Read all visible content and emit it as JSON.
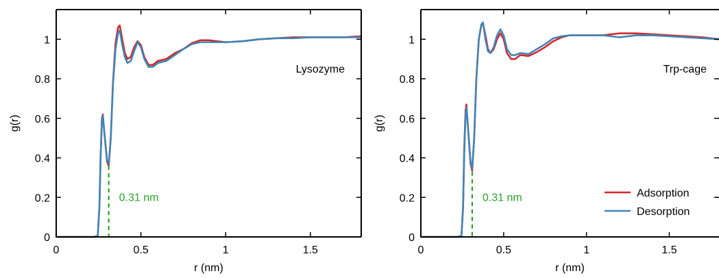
{
  "chart_data": [
    {
      "type": "line",
      "panel_label": "Lysozyme",
      "xlabel": "r (nm)",
      "ylabel": "g(r)",
      "xlim": [
        0,
        1.8
      ],
      "ylim": [
        0,
        1.15
      ],
      "xticks": [
        0,
        0.5,
        1,
        1.5
      ],
      "xtick_labels": [
        "0",
        "0.5",
        "1",
        "1.5"
      ],
      "yticks": [
        0,
        0.2,
        0.4,
        0.6,
        0.8,
        1
      ],
      "ytick_labels": [
        "0",
        "0.2",
        "0.4",
        "0.6",
        "0.8",
        "1"
      ],
      "grid": false,
      "annotation": {
        "text": "0.31 nm",
        "x": 0.31,
        "y": 0.36,
        "color": "#2ca02c"
      },
      "series": [
        {
          "color": "#d62728",
          "points": [
            [
              0,
              0
            ],
            [
              0.22,
              0
            ],
            [
              0.245,
              0.005
            ],
            [
              0.255,
              0.15
            ],
            [
              0.262,
              0.4
            ],
            [
              0.27,
              0.6
            ],
            [
              0.275,
              0.62
            ],
            [
              0.285,
              0.52
            ],
            [
              0.3,
              0.38
            ],
            [
              0.31,
              0.36
            ],
            [
              0.322,
              0.5
            ],
            [
              0.335,
              0.78
            ],
            [
              0.35,
              0.98
            ],
            [
              0.365,
              1.06
            ],
            [
              0.375,
              1.07
            ],
            [
              0.39,
              1.0
            ],
            [
              0.405,
              0.93
            ],
            [
              0.42,
              0.9
            ],
            [
              0.44,
              0.91
            ],
            [
              0.46,
              0.96
            ],
            [
              0.48,
              0.99
            ],
            [
              0.5,
              0.97
            ],
            [
              0.52,
              0.91
            ],
            [
              0.545,
              0.87
            ],
            [
              0.57,
              0.87
            ],
            [
              0.6,
              0.89
            ],
            [
              0.65,
              0.9
            ],
            [
              0.7,
              0.93
            ],
            [
              0.75,
              0.95
            ],
            [
              0.8,
              0.98
            ],
            [
              0.85,
              0.995
            ],
            [
              0.9,
              0.995
            ],
            [
              0.95,
              0.99
            ],
            [
              1.0,
              0.985
            ],
            [
              1.1,
              0.99
            ],
            [
              1.2,
              1.0
            ],
            [
              1.3,
              1.005
            ],
            [
              1.4,
              1.01
            ],
            [
              1.5,
              1.01
            ],
            [
              1.6,
              1.01
            ],
            [
              1.7,
              1.01
            ],
            [
              1.8,
              1.015
            ]
          ]
        },
        {
          "color": "#3f86b7",
          "points": [
            [
              0,
              0
            ],
            [
              0.22,
              0
            ],
            [
              0.245,
              0.005
            ],
            [
              0.255,
              0.15
            ],
            [
              0.262,
              0.4
            ],
            [
              0.27,
              0.6
            ],
            [
              0.275,
              0.615
            ],
            [
              0.285,
              0.52
            ],
            [
              0.3,
              0.39
            ],
            [
              0.31,
              0.37
            ],
            [
              0.322,
              0.5
            ],
            [
              0.335,
              0.77
            ],
            [
              0.35,
              0.95
            ],
            [
              0.365,
              1.03
            ],
            [
              0.375,
              1.045
            ],
            [
              0.39,
              0.97
            ],
            [
              0.405,
              0.91
            ],
            [
              0.42,
              0.88
            ],
            [
              0.44,
              0.89
            ],
            [
              0.46,
              0.94
            ],
            [
              0.48,
              0.985
            ],
            [
              0.5,
              0.96
            ],
            [
              0.52,
              0.9
            ],
            [
              0.545,
              0.86
            ],
            [
              0.57,
              0.86
            ],
            [
              0.6,
              0.88
            ],
            [
              0.65,
              0.89
            ],
            [
              0.7,
              0.92
            ],
            [
              0.75,
              0.95
            ],
            [
              0.8,
              0.975
            ],
            [
              0.85,
              0.985
            ],
            [
              0.9,
              0.985
            ],
            [
              0.95,
              0.985
            ],
            [
              1.0,
              0.985
            ],
            [
              1.1,
              0.99
            ],
            [
              1.2,
              1.0
            ],
            [
              1.3,
              1.005
            ],
            [
              1.4,
              1.005
            ],
            [
              1.5,
              1.01
            ],
            [
              1.6,
              1.01
            ],
            [
              1.7,
              1.01
            ],
            [
              1.8,
              1.01
            ]
          ]
        }
      ]
    },
    {
      "type": "line",
      "panel_label": "Trp-cage",
      "xlabel": "r (nm)",
      "ylabel": "g(r)",
      "xlim": [
        0,
        1.8
      ],
      "ylim": [
        0,
        1.15
      ],
      "xticks": [
        0,
        0.5,
        1,
        1.5
      ],
      "xtick_labels": [
        "0",
        "0.5",
        "1",
        "1.5"
      ],
      "yticks": [
        0,
        0.2,
        0.4,
        0.6,
        0.8,
        1
      ],
      "ytick_labels": [
        "0",
        "0.2",
        "0.4",
        "0.6",
        "0.8",
        "1"
      ],
      "grid": false,
      "legend_position": "bottom-right",
      "annotation": {
        "text": "0.31 nm",
        "x": 0.31,
        "y": 0.33,
        "color": "#2ca02c"
      },
      "series": [
        {
          "name": "Adsorption",
          "color": "#d62728",
          "points": [
            [
              0,
              0
            ],
            [
              0.22,
              0
            ],
            [
              0.245,
              0.005
            ],
            [
              0.255,
              0.15
            ],
            [
              0.262,
              0.45
            ],
            [
              0.27,
              0.64
            ],
            [
              0.275,
              0.67
            ],
            [
              0.285,
              0.55
            ],
            [
              0.3,
              0.37
            ],
            [
              0.31,
              0.335
            ],
            [
              0.322,
              0.5
            ],
            [
              0.335,
              0.8
            ],
            [
              0.35,
              1.0
            ],
            [
              0.365,
              1.07
            ],
            [
              0.375,
              1.08
            ],
            [
              0.39,
              1.02
            ],
            [
              0.405,
              0.95
            ],
            [
              0.42,
              0.93
            ],
            [
              0.44,
              0.95
            ],
            [
              0.46,
              1.0
            ],
            [
              0.48,
              1.03
            ],
            [
              0.5,
              1.0
            ],
            [
              0.52,
              0.93
            ],
            [
              0.545,
              0.9
            ],
            [
              0.57,
              0.9
            ],
            [
              0.6,
              0.92
            ],
            [
              0.65,
              0.915
            ],
            [
              0.7,
              0.935
            ],
            [
              0.75,
              0.96
            ],
            [
              0.8,
              0.99
            ],
            [
              0.85,
              1.01
            ],
            [
              0.9,
              1.02
            ],
            [
              1.0,
              1.02
            ],
            [
              1.1,
              1.02
            ],
            [
              1.2,
              1.03
            ],
            [
              1.3,
              1.03
            ],
            [
              1.4,
              1.025
            ],
            [
              1.5,
              1.02
            ],
            [
              1.6,
              1.015
            ],
            [
              1.7,
              1.01
            ],
            [
              1.8,
              1.0
            ]
          ]
        },
        {
          "name": "Desorption",
          "color": "#3f86b7",
          "points": [
            [
              0,
              0
            ],
            [
              0.22,
              0
            ],
            [
              0.245,
              0.005
            ],
            [
              0.255,
              0.15
            ],
            [
              0.262,
              0.42
            ],
            [
              0.27,
              0.62
            ],
            [
              0.275,
              0.655
            ],
            [
              0.285,
              0.55
            ],
            [
              0.3,
              0.38
            ],
            [
              0.31,
              0.345
            ],
            [
              0.322,
              0.5
            ],
            [
              0.335,
              0.8
            ],
            [
              0.35,
              1.0
            ],
            [
              0.365,
              1.075
            ],
            [
              0.375,
              1.085
            ],
            [
              0.39,
              1.0
            ],
            [
              0.405,
              0.94
            ],
            [
              0.42,
              0.93
            ],
            [
              0.44,
              0.96
            ],
            [
              0.46,
              1.02
            ],
            [
              0.48,
              1.05
            ],
            [
              0.5,
              1.02
            ],
            [
              0.52,
              0.95
            ],
            [
              0.545,
              0.92
            ],
            [
              0.57,
              0.92
            ],
            [
              0.6,
              0.93
            ],
            [
              0.65,
              0.925
            ],
            [
              0.7,
              0.95
            ],
            [
              0.75,
              0.975
            ],
            [
              0.8,
              1.005
            ],
            [
              0.85,
              1.015
            ],
            [
              0.9,
              1.02
            ],
            [
              1.0,
              1.02
            ],
            [
              1.1,
              1.02
            ],
            [
              1.2,
              1.01
            ],
            [
              1.3,
              1.02
            ],
            [
              1.4,
              1.02
            ],
            [
              1.5,
              1.015
            ],
            [
              1.6,
              1.01
            ],
            [
              1.7,
              1.005
            ],
            [
              1.8,
              1.0
            ]
          ]
        }
      ]
    }
  ]
}
